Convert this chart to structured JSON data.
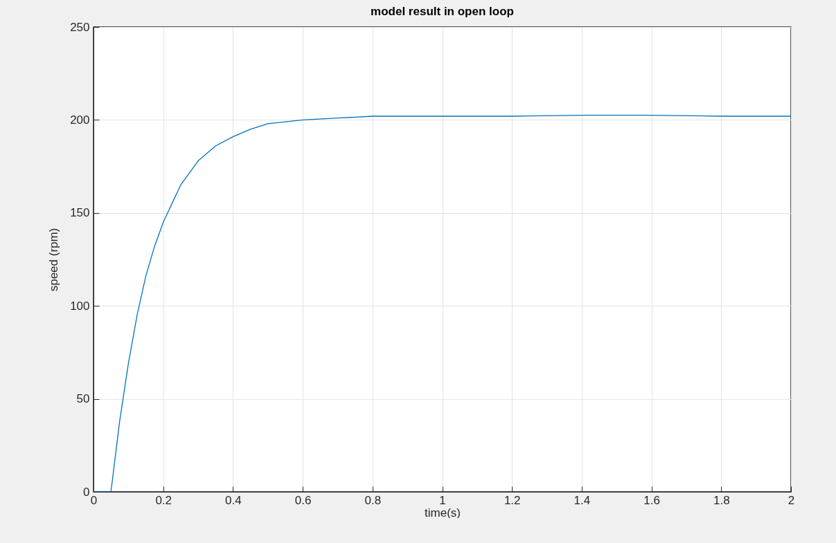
{
  "chart_data": {
    "type": "line",
    "title": "model result in open loop",
    "xlabel": "time(s)",
    "ylabel": "speed (rpm)",
    "x": [
      0,
      0.05,
      0.075,
      0.1,
      0.125,
      0.15,
      0.175,
      0.2,
      0.25,
      0.3,
      0.35,
      0.4,
      0.45,
      0.5,
      0.6,
      0.7,
      0.8,
      1.0,
      1.2,
      1.4,
      1.6,
      1.8,
      2.0
    ],
    "series": [
      {
        "color": "#0072bd",
        "values": [
          0,
          0,
          38,
          69,
          95,
          116,
          132,
          145,
          165,
          178,
          186,
          191,
          195,
          198,
          200,
          201,
          202,
          202,
          202,
          202.5,
          202.5,
          202,
          202
        ]
      }
    ],
    "xlim": [
      0,
      2
    ],
    "xticks": [
      0,
      0.2,
      0.4,
      0.6,
      0.8,
      1,
      1.2,
      1.4,
      1.6,
      1.8,
      2
    ],
    "ylim": [
      0,
      250
    ],
    "yticks": [
      0,
      50,
      100,
      150,
      200,
      250
    ],
    "grid": true,
    "marker": "none",
    "line_style": "solid"
  }
}
